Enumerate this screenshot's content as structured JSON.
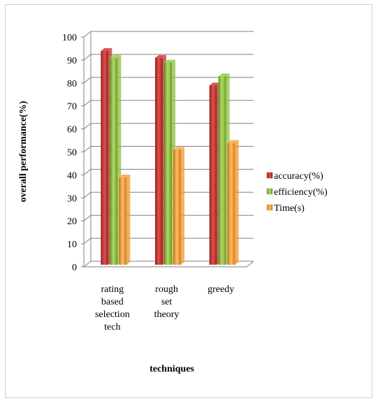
{
  "chart_data": {
    "type": "bar",
    "title": "",
    "xlabel": "techniques",
    "ylabel": "overall performance(%)",
    "ylim": [
      0,
      100
    ],
    "yticks": [
      0,
      10,
      20,
      30,
      40,
      50,
      60,
      70,
      80,
      90,
      100
    ],
    "categories": [
      [
        "rating",
        "based",
        "selection",
        "tech"
      ],
      [
        "rough",
        "set",
        "theory"
      ],
      [
        "greedy"
      ]
    ],
    "series": [
      {
        "name": "accuracy(%)",
        "values": [
          93,
          90,
          78
        ],
        "color": "#c0312f"
      },
      {
        "name": "efficiency(%)",
        "values": [
          90,
          88,
          82
        ],
        "color": "#8cbf3a"
      },
      {
        "name": "Time(s)",
        "values": [
          38,
          50,
          53
        ],
        "color": "#f39a2b"
      }
    ],
    "grid": true,
    "legend": "right"
  }
}
